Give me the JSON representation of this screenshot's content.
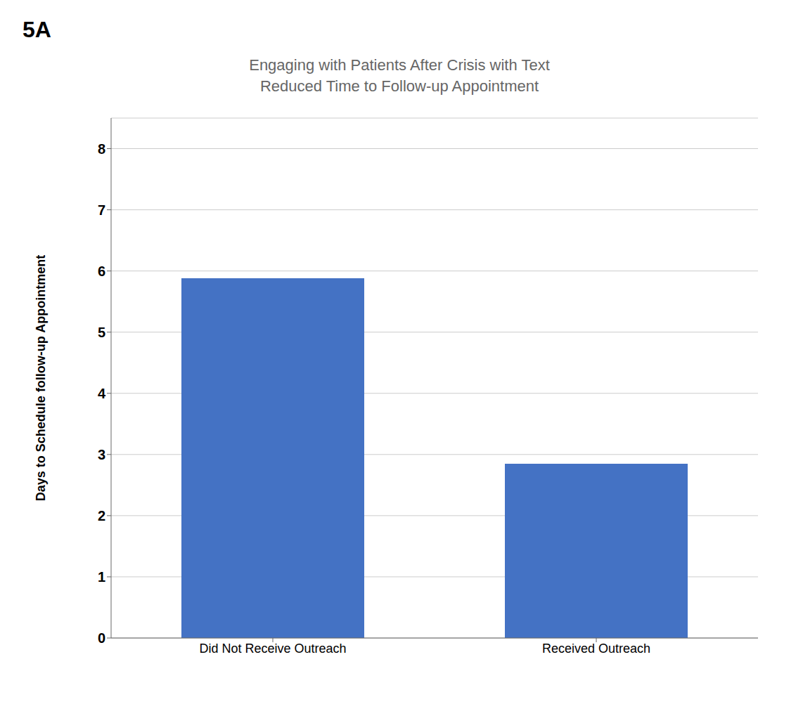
{
  "chart_data": {
    "type": "bar",
    "title": "Engaging with Patients After Crisis with Text\nReduced Time to Follow-up Appointment",
    "ylabel": "Days to Schedule follow-up Appointment",
    "categories": [
      "Did Not Receive Outreach",
      "Received Outreach"
    ],
    "values": [
      5.88,
      2.85
    ],
    "color": "#4472C4",
    "ylim": [
      0,
      8.5
    ],
    "yticks": [
      0,
      1,
      2,
      3,
      4,
      5,
      6,
      7,
      8
    ],
    "grid": true,
    "annotations": [
      "5A"
    ]
  }
}
